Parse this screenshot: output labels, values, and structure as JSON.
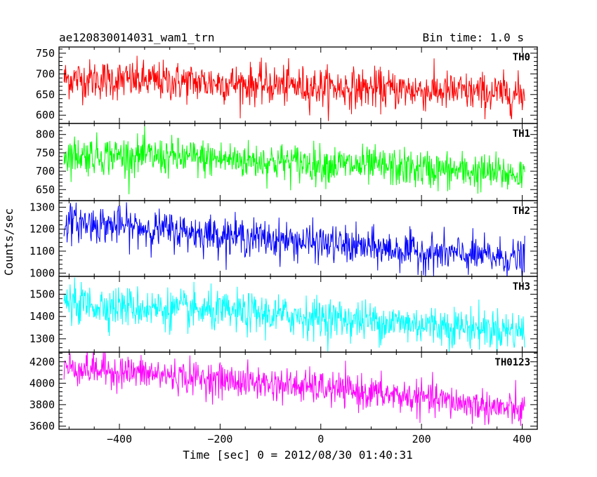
{
  "chart_data": {
    "type": "line",
    "title": "ae120830014031_wam1_trn",
    "bin_time": "Bin time: 1.0 s",
    "xlabel": "Time [sec] 0 = 2012/08/30 01:40:31",
    "ylabel": "Counts/sec",
    "xlim": [
      -520,
      430
    ],
    "x_range_data": [
      -510,
      405
    ],
    "x_ticks": [
      -400,
      -200,
      0,
      200,
      400
    ],
    "panels": [
      {
        "name": "TH0",
        "color": "#ff0000",
        "ylim": [
          580,
          765
        ],
        "y_ticks": [
          600,
          650,
          700,
          750
        ],
        "trend": [
          [
            -510,
            688
          ],
          [
            -400,
            685
          ],
          [
            -200,
            678
          ],
          [
            0,
            668
          ],
          [
            200,
            660
          ],
          [
            405,
            650
          ]
        ],
        "noise": 24
      },
      {
        "name": "TH1",
        "color": "#00ff00",
        "ylim": [
          620,
          830
        ],
        "y_ticks": [
          650,
          700,
          750,
          800
        ],
        "trend": [
          [
            -510,
            745
          ],
          [
            -400,
            743
          ],
          [
            -200,
            733
          ],
          [
            0,
            720
          ],
          [
            200,
            706
          ],
          [
            405,
            690
          ]
        ],
        "noise": 26
      },
      {
        "name": "TH2",
        "color": "#0000ff",
        "ylim": [
          985,
          1330
        ],
        "y_ticks": [
          1000,
          1100,
          1200,
          1300
        ],
        "trend": [
          [
            -510,
            1235
          ],
          [
            -400,
            1215
          ],
          [
            -200,
            1175
          ],
          [
            0,
            1135
          ],
          [
            200,
            1095
          ],
          [
            405,
            1065
          ]
        ],
        "noise": 42
      },
      {
        "name": "TH3",
        "color": "#00ffff",
        "ylim": [
          1240,
          1580
        ],
        "y_ticks": [
          1300,
          1400,
          1500
        ],
        "trend": [
          [
            -510,
            1460
          ],
          [
            -400,
            1445
          ],
          [
            -200,
            1420
          ],
          [
            0,
            1395
          ],
          [
            200,
            1365
          ],
          [
            405,
            1335
          ]
        ],
        "noise": 45
      },
      {
        "name": "TH0123",
        "color": "#ff00ff",
        "ylim": [
          3570,
          4290
        ],
        "y_ticks": [
          3600,
          3800,
          4000,
          4200
        ],
        "trend": [
          [
            -510,
            4150
          ],
          [
            -400,
            4110
          ],
          [
            -200,
            4030
          ],
          [
            0,
            3955
          ],
          [
            200,
            3860
          ],
          [
            405,
            3740
          ]
        ],
        "noise": 78
      }
    ]
  }
}
